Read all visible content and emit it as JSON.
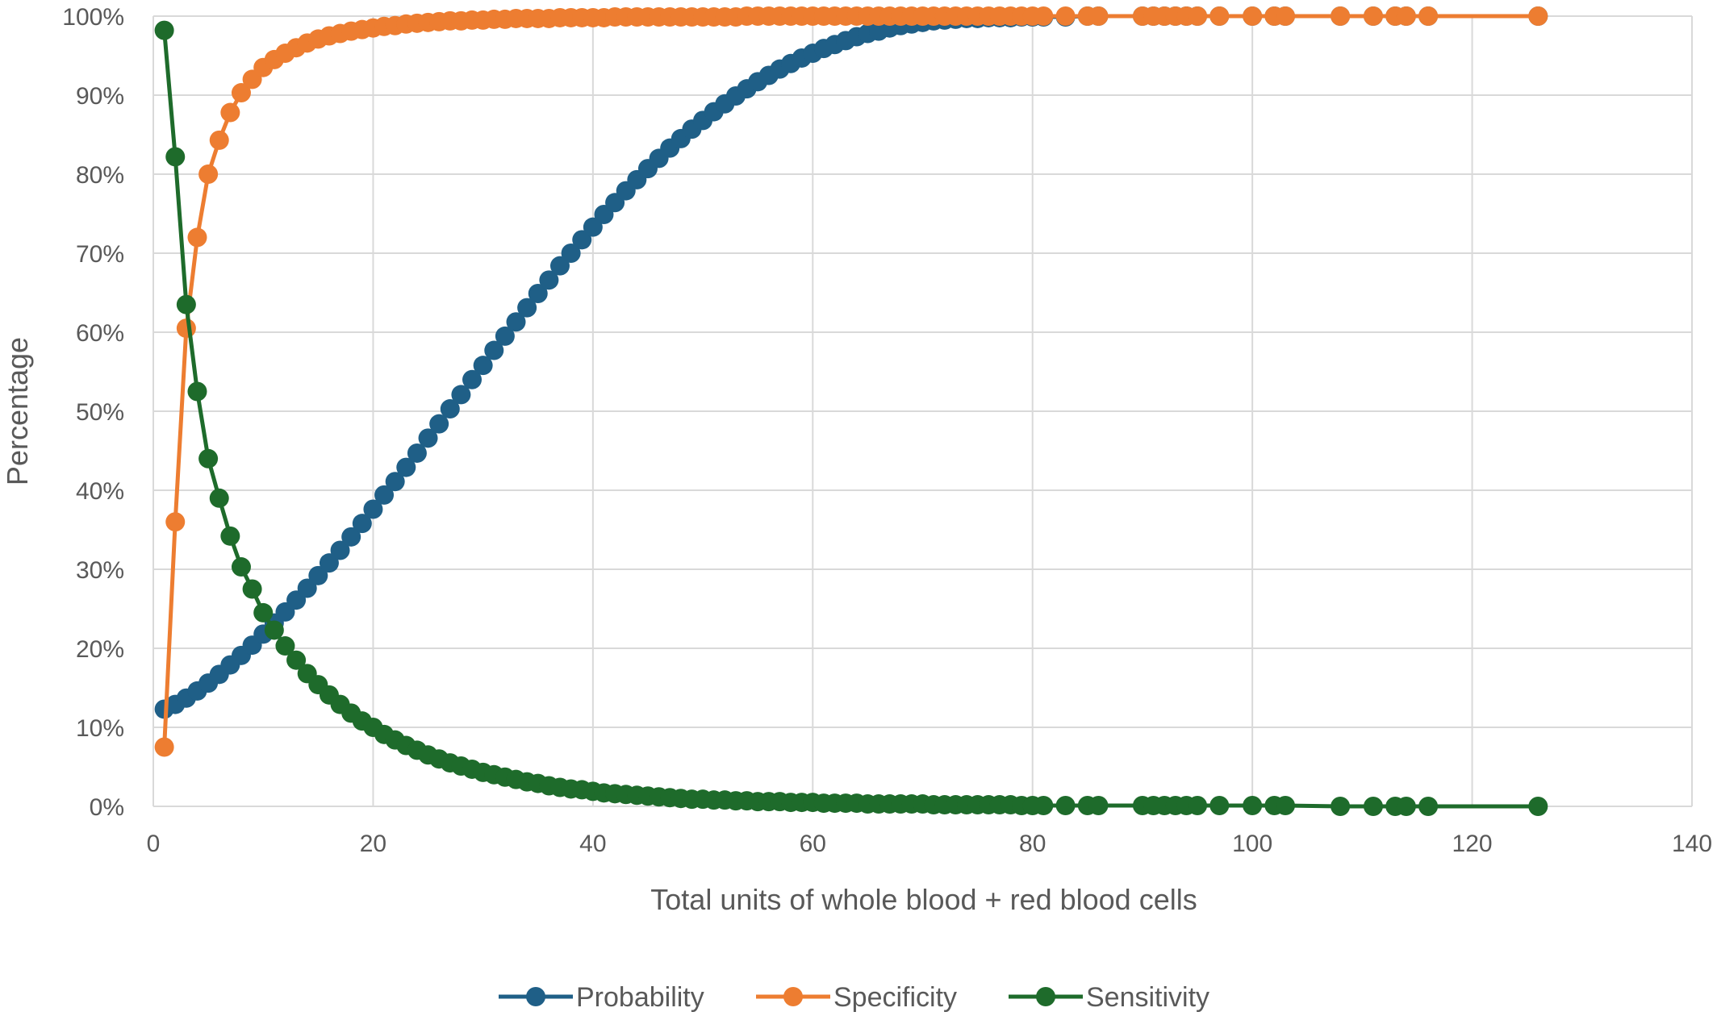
{
  "chart_data": {
    "type": "line",
    "xlabel": "Total units of whole blood + red blood cells",
    "ylabel": "Percentage",
    "xlim": [
      0,
      140
    ],
    "ylim": [
      0,
      100
    ],
    "x_ticks": [
      "0",
      "20",
      "40",
      "60",
      "80",
      "100",
      "120",
      "140"
    ],
    "y_ticks": [
      "0%",
      "10%",
      "20%",
      "30%",
      "40%",
      "50%",
      "60%",
      "70%",
      "80%",
      "90%",
      "100%"
    ],
    "grid": true,
    "legend_position": "bottom",
    "x": [
      1,
      2,
      3,
      4,
      5,
      6,
      7,
      8,
      9,
      10,
      11,
      12,
      13,
      14,
      15,
      16,
      17,
      18,
      19,
      20,
      21,
      22,
      23,
      24,
      25,
      26,
      27,
      28,
      29,
      30,
      31,
      32,
      33,
      34,
      35,
      36,
      37,
      38,
      39,
      40,
      41,
      42,
      43,
      44,
      45,
      46,
      47,
      48,
      49,
      50,
      51,
      52,
      53,
      54,
      55,
      56,
      57,
      58,
      59,
      60,
      61,
      62,
      63,
      64,
      65,
      66,
      67,
      68,
      69,
      70,
      71,
      72,
      73,
      74,
      75,
      76,
      77,
      78,
      79,
      80,
      81,
      83,
      85,
      86,
      90,
      91,
      92,
      93,
      94,
      95,
      97,
      100,
      102,
      103,
      108,
      111,
      113,
      114,
      116,
      126
    ],
    "series": [
      {
        "name": "Probability",
        "color": "#1f5f87",
        "values": [
          12.3,
          12.9,
          13.7,
          14.6,
          15.6,
          16.7,
          17.9,
          19.1,
          20.4,
          21.8,
          23.2,
          24.6,
          26.1,
          27.6,
          29.2,
          30.8,
          32.4,
          34.1,
          35.8,
          37.6,
          39.4,
          41.1,
          42.9,
          44.7,
          46.6,
          48.4,
          50.3,
          52.1,
          54.0,
          55.8,
          57.7,
          59.5,
          61.3,
          63.1,
          64.9,
          66.6,
          68.4,
          70.0,
          71.7,
          73.3,
          74.9,
          76.4,
          77.9,
          79.3,
          80.7,
          82.0,
          83.3,
          84.5,
          85.7,
          86.8,
          87.9,
          88.9,
          89.9,
          90.8,
          91.7,
          92.5,
          93.3,
          94.0,
          94.7,
          95.3,
          95.9,
          96.4,
          96.9,
          97.4,
          97.8,
          98.1,
          98.5,
          98.8,
          99.0,
          99.2,
          99.4,
          99.5,
          99.6,
          99.7,
          99.7,
          99.8,
          99.8,
          99.8,
          99.9,
          99.9,
          99.9,
          99.9,
          100,
          100,
          100,
          100,
          100,
          100,
          100,
          100,
          100,
          100,
          100,
          100,
          100,
          100,
          100,
          100,
          100,
          100
        ]
      },
      {
        "name": "Specificity",
        "color": "#ed7d31",
        "values": [
          7.5,
          36.0,
          60.5,
          72.0,
          80.0,
          84.3,
          87.8,
          90.3,
          92.0,
          93.5,
          94.5,
          95.3,
          96.0,
          96.6,
          97.1,
          97.5,
          97.8,
          98.1,
          98.3,
          98.5,
          98.7,
          98.8,
          99.0,
          99.1,
          99.2,
          99.3,
          99.4,
          99.4,
          99.5,
          99.5,
          99.6,
          99.6,
          99.7,
          99.7,
          99.7,
          99.7,
          99.8,
          99.8,
          99.8,
          99.8,
          99.8,
          99.9,
          99.9,
          99.9,
          99.9,
          99.9,
          99.9,
          99.9,
          99.9,
          99.9,
          99.9,
          99.9,
          99.9,
          100,
          100,
          100,
          100,
          100,
          100,
          100,
          100,
          100,
          100,
          100,
          100,
          100,
          100,
          100,
          100,
          100,
          100,
          100,
          100,
          100,
          100,
          100,
          100,
          100,
          100,
          100,
          100,
          100,
          100,
          100,
          100,
          100,
          100,
          100,
          100,
          100,
          100,
          100,
          100,
          100,
          100,
          100,
          100,
          100,
          100,
          100
        ]
      },
      {
        "name": "Sensitivity",
        "color": "#1e6b2b",
        "values": [
          98.2,
          82.2,
          63.5,
          52.5,
          44.0,
          39.0,
          34.2,
          30.3,
          27.5,
          24.5,
          22.3,
          20.3,
          18.5,
          16.8,
          15.4,
          14.1,
          12.9,
          11.8,
          10.8,
          10.0,
          9.1,
          8.4,
          7.7,
          7.1,
          6.5,
          6.0,
          5.5,
          5.1,
          4.7,
          4.3,
          4.0,
          3.7,
          3.4,
          3.1,
          2.9,
          2.6,
          2.4,
          2.2,
          2.1,
          1.9,
          1.7,
          1.6,
          1.5,
          1.4,
          1.3,
          1.2,
          1.1,
          1.0,
          0.9,
          0.9,
          0.8,
          0.8,
          0.7,
          0.7,
          0.6,
          0.6,
          0.6,
          0.5,
          0.5,
          0.5,
          0.4,
          0.4,
          0.4,
          0.4,
          0.3,
          0.3,
          0.3,
          0.3,
          0.3,
          0.3,
          0.2,
          0.2,
          0.2,
          0.2,
          0.2,
          0.2,
          0.2,
          0.2,
          0.1,
          0.1,
          0.1,
          0.1,
          0.1,
          0.1,
          0.1,
          0.1,
          0.1,
          0.1,
          0.1,
          0.1,
          0.1,
          0.1,
          0.1,
          0.1,
          0,
          0,
          0,
          0,
          0,
          0
        ]
      }
    ]
  }
}
